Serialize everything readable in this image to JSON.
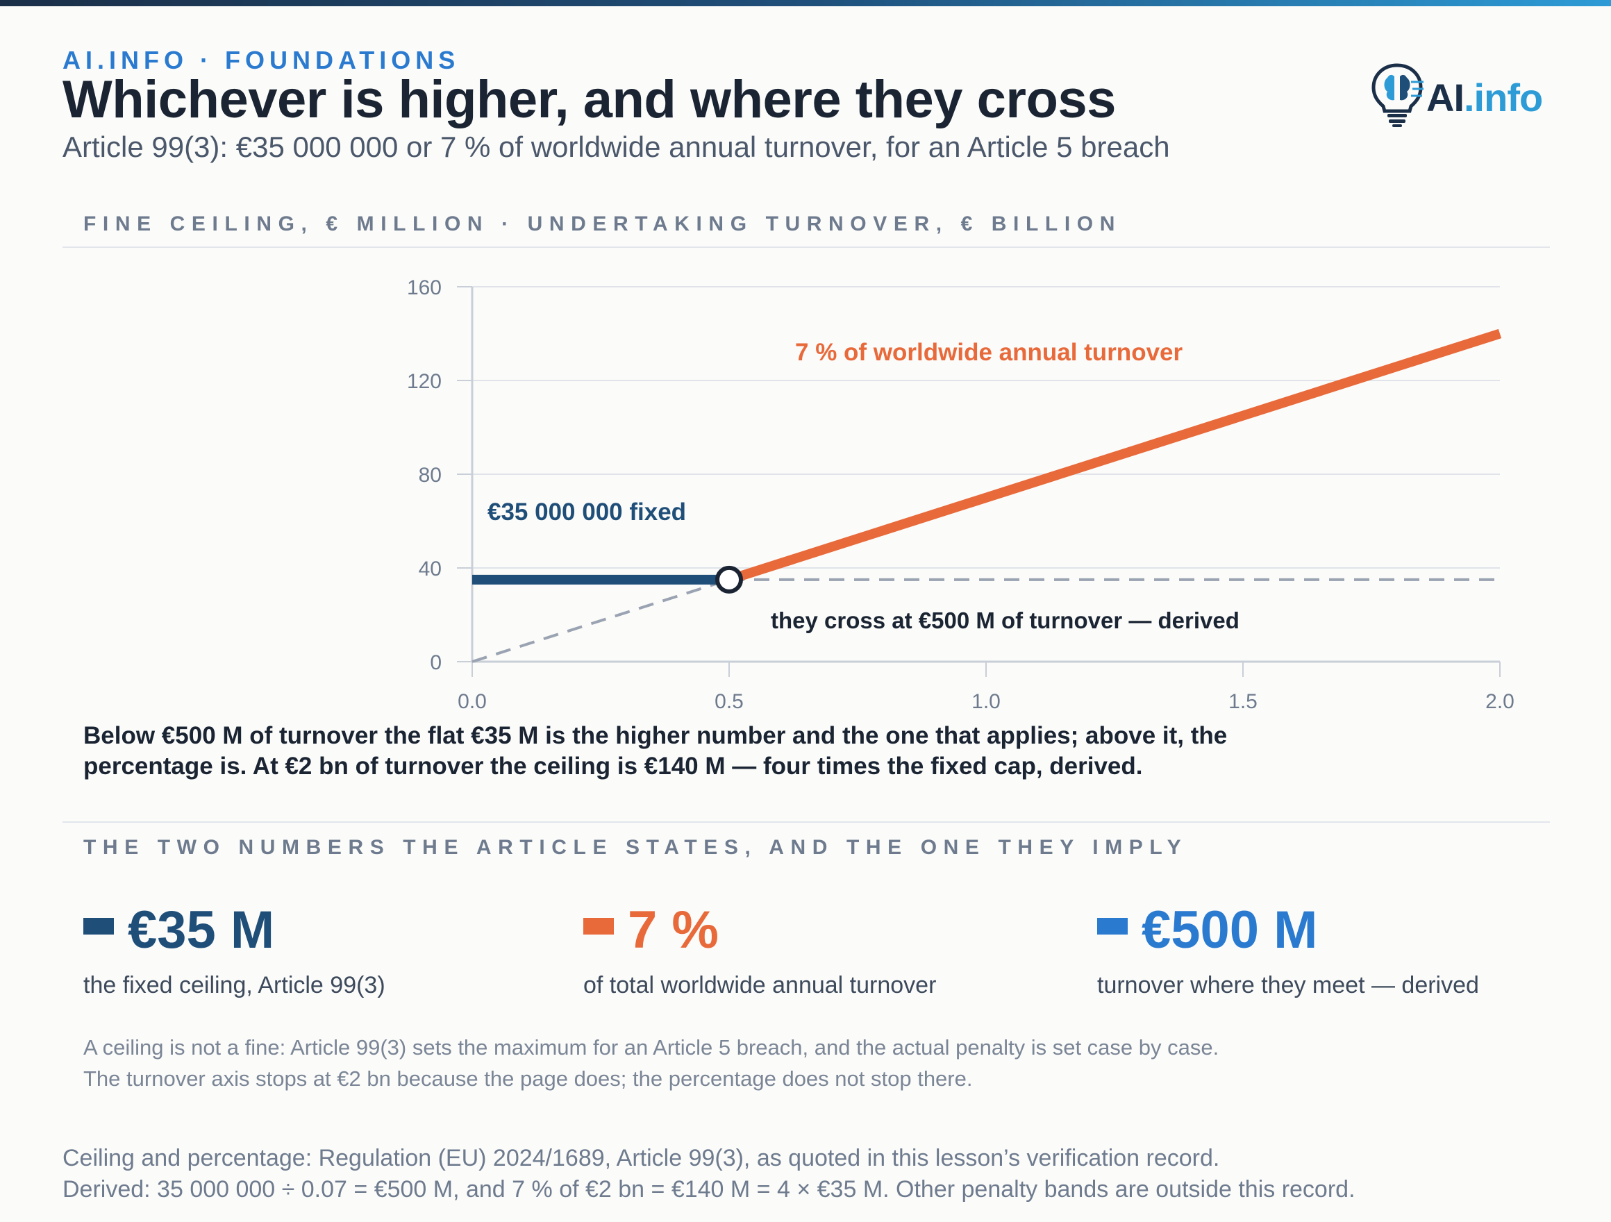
{
  "header": {
    "kicker": "AI.INFO · FOUNDATIONS",
    "title": "Whichever is higher, and where they cross",
    "subtitle": "Article 99(3): €35 000 000 or 7 % of worldwide annual turnover, for an Article 5 breach"
  },
  "logo": {
    "text_ai": "AI",
    "text_info": ".info"
  },
  "chart_section_label": "FINE CEILING, € MILLION · UNDERTAKING TURNOVER, € BILLION",
  "chart_data": {
    "type": "line",
    "title": "FINE CEILING, € MILLION · UNDERTAKING TURNOVER, € BILLION",
    "xlabel": "",
    "ylabel": "",
    "xlim": [
      0,
      2.0
    ],
    "ylim": [
      0,
      160
    ],
    "x_ticks": [
      "0.0",
      "0.5",
      "1.0",
      "1.5",
      "2.0"
    ],
    "y_ticks": [
      "0",
      "40",
      "80",
      "120",
      "160"
    ],
    "grid": "horizontal",
    "series": [
      {
        "name": "€35 000 000 fixed",
        "x": [
          0,
          0.5
        ],
        "y": [
          35,
          35
        ],
        "color": "#1f4e79",
        "style": "solid"
      },
      {
        "name": "7 % of worldwide annual turnover",
        "x": [
          0.5,
          2.0
        ],
        "y": [
          35,
          140
        ],
        "color": "#e8693a",
        "style": "solid"
      },
      {
        "name": "",
        "x": [
          0,
          0.5
        ],
        "y": [
          0,
          35
        ],
        "color": "#9aa3b2",
        "style": "dashed"
      },
      {
        "name": "",
        "x": [
          0.5,
          2.0
        ],
        "y": [
          35,
          35
        ],
        "color": "#9aa3b2",
        "style": "dashed"
      }
    ],
    "crossover": {
      "x": 0.5,
      "y": 35
    },
    "annotations": {
      "fixed_label": "€35 000 000 fixed",
      "percent_label": "7 % of worldwide annual turnover",
      "cross_label": "they cross at €500 M of turnover — derived"
    }
  },
  "chart_caption": "Below €500 M of turnover the flat €35 M is the higher number and the one that applies; above it, the percentage is. At €2 bn of turnover the ceiling is €140 M — four times the fixed cap, derived.",
  "stats_section_label": "THE TWO NUMBERS THE ARTICLE STATES, AND THE ONE THEY IMPLY",
  "stats": [
    {
      "value": "€35 M",
      "desc": "the fixed ceiling, Article 99(3)",
      "color": "#1f4e79"
    },
    {
      "value": "7 %",
      "desc": "of total worldwide annual turnover",
      "color": "#e8693a"
    },
    {
      "value": "€500 M",
      "desc": "turnover where they meet — derived",
      "color": "#2a7ad0"
    }
  ],
  "note": [
    "A ceiling is not a fine: Article 99(3) sets the maximum for an Article 5 breach, and the actual penalty is set case by case.",
    "The turnover axis stops at €2 bn because the page does; the percentage does not stop there."
  ],
  "footer": [
    "Ceiling and percentage: Regulation (EU) 2024/1689, Article 99(3), as quoted in this lesson’s verification record.",
    "Derived: 35 000 000 ÷ 0.07 = €500 M, and 7 % of €2 bn = €140 M = 4 × €35 M. Other penalty bands are outside this record."
  ]
}
